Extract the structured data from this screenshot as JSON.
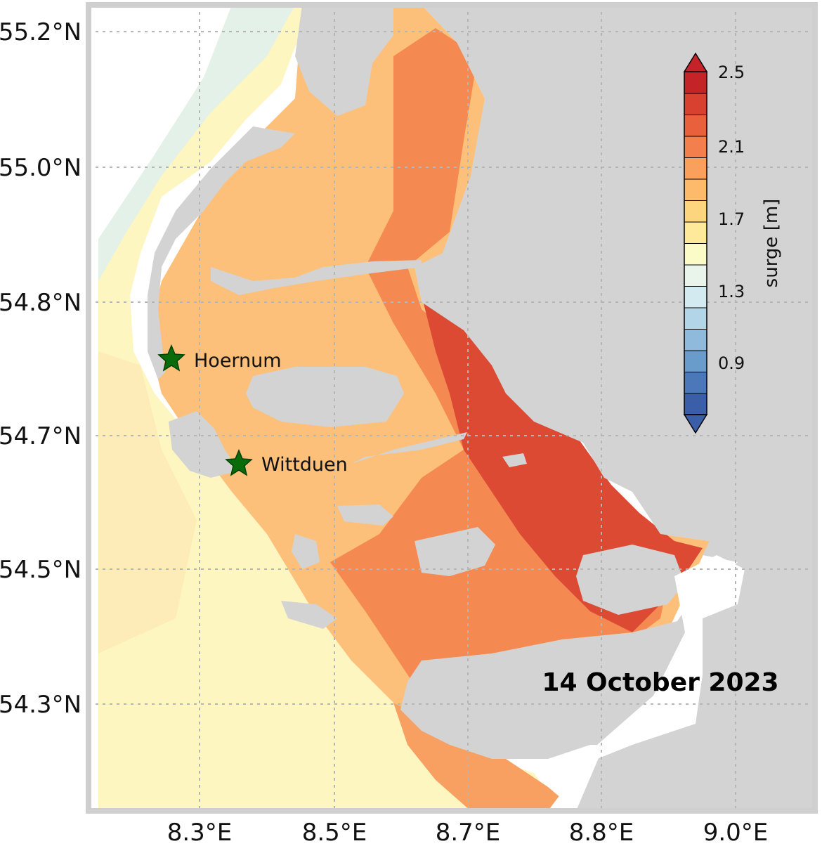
{
  "map": {
    "date_label": "14 October 2023",
    "stations": [
      {
        "name": "Hoernum"
      },
      {
        "name": "Wittduen"
      }
    ],
    "lat_labels": [
      "55.2°N",
      "55.0°N",
      "54.8°N",
      "54.7°N",
      "54.5°N",
      "54.3°N"
    ],
    "lon_labels": [
      "8.3°E",
      "8.5°E",
      "8.7°E",
      "8.8°E",
      "9.0°E"
    ],
    "land_color": "#d3d3d3",
    "station_marker_color": "#006400"
  },
  "colorbar": {
    "label": "surge [m]",
    "tick_labels": [
      "2.5",
      "2.1",
      "1.7",
      "1.3",
      "0.9"
    ],
    "colors": [
      "#3a5fa8",
      "#4a78b8",
      "#6a9ccb",
      "#8fbadb",
      "#b2d6e8",
      "#d3eaf1",
      "#e9f5ea",
      "#fbfbc8",
      "#fee89a",
      "#fdd57e",
      "#fdba6b",
      "#f9a05c",
      "#f3804c",
      "#e8603c",
      "#d8412f",
      "#c42427"
    ]
  }
}
